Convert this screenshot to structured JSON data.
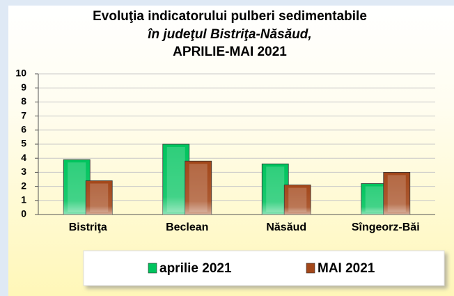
{
  "chart_data": {
    "type": "bar",
    "title": [
      "Evoluţia indicatorului pulberi sedimentabile",
      "în judeţul Bistriţa-Năsăud,",
      "APRILIE-MAI 2021"
    ],
    "categories": [
      "Bistriţa",
      "Beclean",
      "Năsăud",
      "Sîngeorz-Băi"
    ],
    "series": [
      {
        "name": "aprilie 2021",
        "color": "#00c45e",
        "values": [
          3.9,
          5.0,
          3.6,
          2.2
        ]
      },
      {
        "name": "MAI 2021",
        "color": "#a3471a",
        "values": [
          2.4,
          3.8,
          2.1,
          3.0
        ]
      }
    ],
    "ylim": [
      0,
      10
    ],
    "yticks": [
      0,
      1,
      2,
      3,
      4,
      5,
      6,
      7,
      8,
      9,
      10
    ],
    "grid": true,
    "legend": "bottom"
  }
}
